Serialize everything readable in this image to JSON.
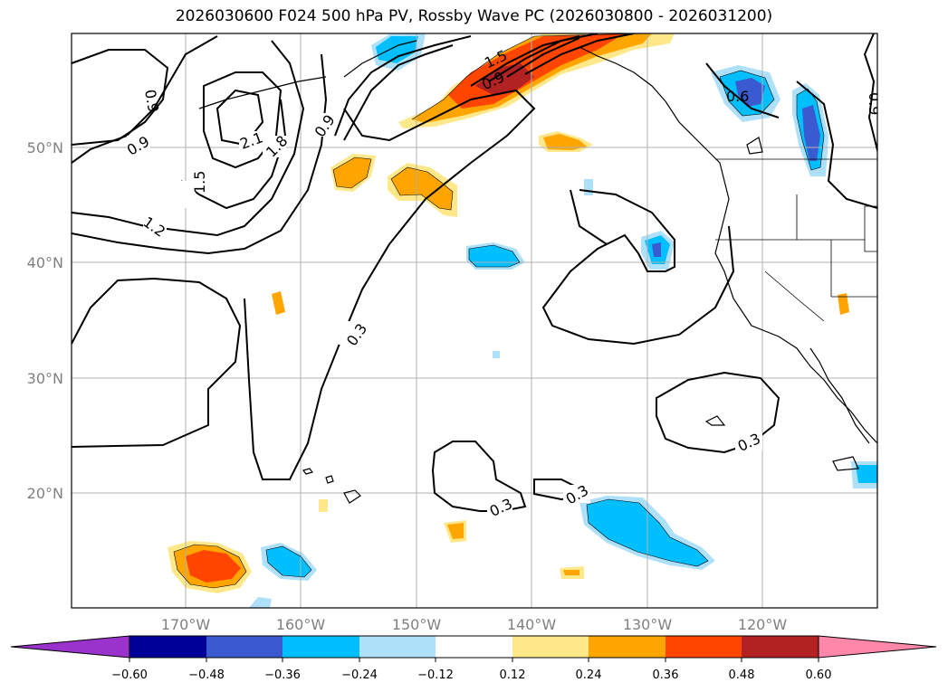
{
  "title": "2026030600 F024 500 hPa PV, Rossby Wave PC (2026030800 - 2026031200)",
  "map": {
    "lat_labels": [
      "50°N",
      "40°N",
      "30°N",
      "20°N"
    ],
    "lon_labels": [
      "170°W",
      "160°W",
      "150°W",
      "140°W",
      "130°W",
      "120°W"
    ],
    "gridlines": true
  },
  "contours": {
    "labels": [
      "0.9",
      "0.9",
      "0.9",
      "2.1",
      "1.8",
      "1.5",
      "1.2",
      "1.5",
      "0.9",
      "0.6",
      "0.9",
      "0.3",
      "0.3",
      "0.3",
      "0.3"
    ]
  },
  "colorbar": {
    "ticks": [
      "−0.60",
      "−0.48",
      "−0.36",
      "−0.24",
      "−0.12",
      "0.12",
      "0.24",
      "0.36",
      "0.48",
      "0.60"
    ],
    "colors": [
      "#9933cc",
      "#000099",
      "#3a5bd0",
      "#00bfff",
      "#aee0fa",
      "#ffffff",
      "#ffe88a",
      "#ffa500",
      "#ff4500",
      "#b22222",
      "#ff88aa"
    ]
  }
}
